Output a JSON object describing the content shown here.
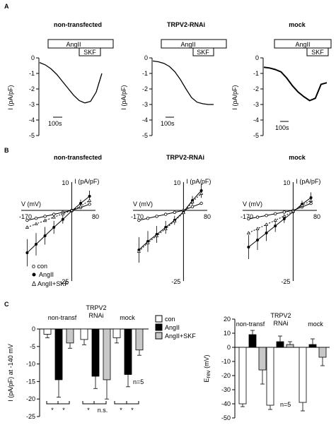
{
  "panel_labels": {
    "a": "A",
    "b": "B",
    "c": "C"
  },
  "row_a": {
    "panels": [
      {
        "title": "non-transfected",
        "bar1": "AngII",
        "bar2": "SKF",
        "ylabel": "I (pA/pF)",
        "scalebar": "100s"
      },
      {
        "title": "TRPV2-RNAi",
        "bar1": "AngII",
        "bar2": "SKF",
        "ylabel": "I (pA/pF)",
        "scalebar": "100s"
      },
      {
        "title": "mock",
        "bar1": "AngII",
        "bar2": "SKF",
        "ylabel": "I (pA/pF)",
        "scalebar": "100s"
      }
    ],
    "yticks": [
      "0",
      "-1",
      "-2",
      "-3",
      "-4",
      "-5"
    ]
  },
  "row_b": {
    "panels": [
      {
        "title": "non-transfected",
        "xlabel": "V (mV)",
        "ylabel": "I (pA/pF)",
        "xmin": "-170",
        "xmax": "80",
        "ymax": "10",
        "ymin": "-25"
      },
      {
        "title": "TRPV2-RNAi",
        "xlabel": "V (mV)",
        "ylabel": "I (pA/pF)",
        "xmin": "-170",
        "xmax": "80",
        "ymax": "10",
        "ymin": "-25"
      },
      {
        "title": "mock",
        "xlabel": "V (mV)",
        "ylabel": "I (pA/pF)",
        "xmin": "-170",
        "xmax": "80",
        "ymax": "10",
        "ymin": "-25"
      }
    ],
    "legend": [
      "o  con",
      "AngII",
      "Δ AngII+SKF"
    ]
  },
  "row_c": {
    "left": {
      "ylabel": "I (pA/pF) at -140 mV",
      "group_labels": [
        "non-transf",
        "TRPV2",
        "RNAi",
        "mock"
      ],
      "n_label": "n=5",
      "sig_labels": [
        "*",
        "*",
        "*",
        "n.s.",
        "*",
        "*"
      ]
    },
    "legend": [
      "con",
      "AngII",
      "AngII+SKF"
    ],
    "right": {
      "ylabel": "E",
      "ylabel_sub": "rev",
      "ylabel_unit": " (mV)",
      "group_labels": [
        "non-transf",
        "TRPV2",
        "RNAi",
        "mock"
      ],
      "n_label": "n=5"
    }
  },
  "colors": {
    "con": "#ffffff",
    "angii": "#000000",
    "skf": "#c8c8c8"
  },
  "chart_data": [
    {
      "type": "line",
      "panel": "A-non-transfected",
      "x": [
        0,
        30,
        60,
        90,
        120,
        150,
        180,
        210,
        240,
        270,
        300,
        330
      ],
      "y": [
        -0.3,
        -0.45,
        -0.7,
        -1.05,
        -1.5,
        -1.95,
        -2.4,
        -2.75,
        -2.9,
        -2.8,
        -2.2,
        -1.0
      ],
      "ylim": [
        -5,
        0
      ]
    },
    {
      "type": "line",
      "panel": "A-TRPV2-RNAi",
      "x": [
        0,
        30,
        60,
        90,
        120,
        150,
        180,
        210,
        240,
        270,
        300,
        330
      ],
      "y": [
        -0.2,
        -0.25,
        -0.35,
        -0.55,
        -0.9,
        -1.4,
        -2.0,
        -2.55,
        -2.85,
        -2.95,
        -3.0,
        -3.0
      ],
      "ylim": [
        -5,
        0
      ]
    },
    {
      "type": "line",
      "panel": "A-mock",
      "x": [
        0,
        30,
        60,
        90,
        120,
        150,
        180,
        210,
        240,
        270,
        300,
        330
      ],
      "y": [
        -0.6,
        -0.65,
        -0.75,
        -0.9,
        -1.3,
        -1.8,
        -2.2,
        -2.5,
        -2.75,
        -2.6,
        -1.7,
        -1.6
      ],
      "ylim": [
        -5,
        0
      ]
    },
    {
      "type": "scatter",
      "panel": "B-non-transfected",
      "x": [
        -150,
        -120,
        -90,
        -60,
        -30,
        0,
        30,
        60
      ],
      "series": [
        {
          "name": "con",
          "values": [
            -3.5,
            -2.8,
            -2.1,
            -1.4,
            -0.7,
            0.0,
            1.0,
            2.2
          ]
        },
        {
          "name": "AngII",
          "values": [
            -15.0,
            -12.0,
            -9.0,
            -6.0,
            -3.2,
            -0.2,
            2.5,
            5.0
          ]
        },
        {
          "name": "AngII+SKF",
          "values": [
            -6.0,
            -4.8,
            -3.6,
            -2.4,
            -1.2,
            0.0,
            1.5,
            3.5
          ]
        }
      ],
      "xlim": [
        -170,
        80
      ],
      "ylim": [
        -25,
        10
      ]
    },
    {
      "type": "scatter",
      "panel": "B-TRPV2-RNAi",
      "x": [
        -150,
        -120,
        -90,
        -60,
        -30,
        0,
        30,
        60
      ],
      "series": [
        {
          "name": "con",
          "values": [
            -3.5,
            -2.8,
            -2.1,
            -1.4,
            -0.7,
            0.0,
            1.3,
            2.5
          ]
        },
        {
          "name": "AngII",
          "values": [
            -14.0,
            -11.0,
            -8.5,
            -6.0,
            -3.5,
            -0.5,
            3.5,
            7.0
          ]
        },
        {
          "name": "AngII+SKF",
          "values": [
            -14.5,
            -11.5,
            -9.0,
            -6.5,
            -3.8,
            -0.8,
            3.0,
            6.0
          ]
        }
      ],
      "xlim": [
        -170,
        80
      ],
      "ylim": [
        -25,
        10
      ]
    },
    {
      "type": "scatter",
      "panel": "B-mock",
      "x": [
        -150,
        -120,
        -90,
        -60,
        -30,
        0,
        30,
        60
      ],
      "series": [
        {
          "name": "con",
          "values": [
            -3.0,
            -2.4,
            -1.8,
            -1.2,
            -0.6,
            0.0,
            1.2,
            2.5
          ]
        },
        {
          "name": "AngII",
          "values": [
            -13.0,
            -10.5,
            -8.0,
            -5.5,
            -3.0,
            -0.5,
            2.2,
            4.5
          ]
        },
        {
          "name": "AngII+SKF",
          "values": [
            -8.0,
            -6.5,
            -5.0,
            -3.5,
            -2.0,
            -0.3,
            1.8,
            3.5
          ]
        }
      ],
      "xlim": [
        -170,
        80
      ],
      "ylim": [
        -25,
        10
      ]
    },
    {
      "type": "bar",
      "panel": "C-left",
      "categories": [
        "non-transf",
        "TRPV2 RNAi",
        "mock"
      ],
      "series": [
        {
          "name": "con",
          "values": [
            -1.5,
            -3.0,
            -2.5
          ],
          "errors": [
            1.0,
            1.5,
            1.5
          ]
        },
        {
          "name": "AngII",
          "values": [
            -14.5,
            -13.5,
            -13.0
          ],
          "errors": [
            5.0,
            3.5,
            3.5
          ]
        },
        {
          "name": "AngII+SKF",
          "values": [
            -4.0,
            -14.5,
            -6.0
          ],
          "errors": [
            1.5,
            5.5,
            1.5
          ]
        }
      ],
      "ylim": [
        -25,
        0
      ],
      "yticks": [
        0,
        -5,
        -10,
        -15,
        -20,
        -25
      ]
    },
    {
      "type": "bar",
      "panel": "C-right",
      "categories": [
        "non-transf",
        "TRPV2 RNAi",
        "mock"
      ],
      "series": [
        {
          "name": "con",
          "values": [
            -40,
            -41,
            -39
          ],
          "errors": [
            2,
            3,
            6
          ]
        },
        {
          "name": "AngII",
          "values": [
            9,
            4,
            2
          ],
          "errors": [
            3,
            4,
            4
          ]
        },
        {
          "name": "AngII+SKF",
          "values": [
            -16,
            2,
            -7
          ],
          "errors": [
            10,
            2,
            6
          ]
        }
      ],
      "ylim": [
        -50,
        20
      ],
      "yticks": [
        20,
        10,
        0,
        -10,
        -20,
        -30,
        -40,
        -50
      ]
    }
  ]
}
